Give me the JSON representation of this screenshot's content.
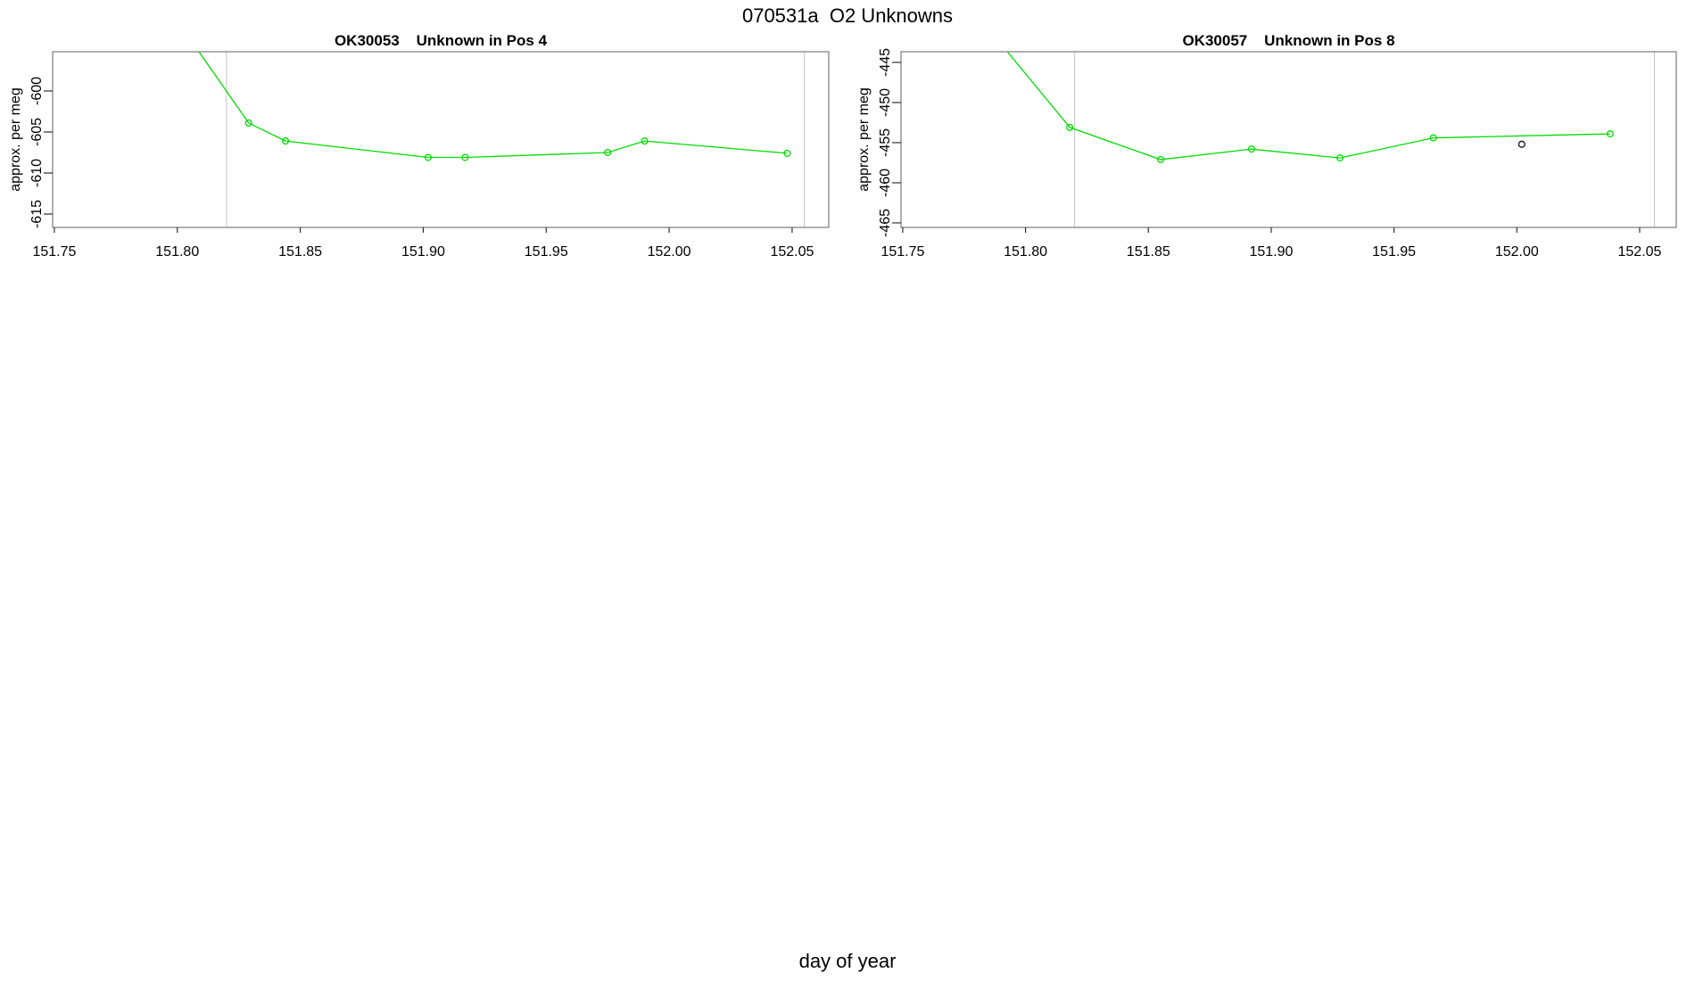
{
  "figure": {
    "title": "070531a  O2 Unknowns",
    "xlabel": "day of year"
  },
  "colors": {
    "series_green": "#00DC00",
    "reference_gray": "#C4C4C4",
    "outlier_black": "#1a1a1a",
    "border_gray": "#7a7a7a",
    "tick_color": "#1f1f1f",
    "text_color": "#000000",
    "background": "#ffffff"
  },
  "chart_data": [
    {
      "id": "ok30053",
      "type": "line",
      "title": "OK30053    Unknown in Pos 4",
      "ylabel": "approx. per meg",
      "xlabel": "day of year",
      "xlim": [
        151.7493,
        152.0649
      ],
      "ylim": [
        -616.63,
        -595.22
      ],
      "xticks": [
        151.75,
        151.8,
        151.85,
        151.9,
        151.95,
        152.0,
        152.05
      ],
      "xtick_labels": [
        "151.75",
        "151.80",
        "151.85",
        "151.90",
        "151.95",
        "152.00",
        "152.05"
      ],
      "yticks": [
        -600,
        -605,
        -610,
        -615
      ],
      "ytick_labels": [
        "-600",
        "-605",
        "-610",
        "-615"
      ],
      "vlines": [
        151.82,
        152.055
      ],
      "grid": false,
      "legend": null,
      "series": [
        {
          "name": "unknown-pos-4",
          "marker": "open-circle",
          "lead_in": {
            "x": 151.795,
            "y": -589.3
          },
          "x": [
            151.829,
            151.844,
            151.902,
            151.917,
            151.975,
            151.99,
            152.048
          ],
          "y": [
            -603.9,
            -606.1,
            -608.1,
            -608.1,
            -607.5,
            -606.1,
            -607.6
          ]
        }
      ],
      "outliers": []
    },
    {
      "id": "ok30057",
      "type": "line",
      "title": "OK30057    Unknown in Pos 8",
      "ylabel": "approx. per meg",
      "xlabel": "day of year",
      "xlim": [
        151.7493,
        152.0649
      ],
      "ylim": [
        -465.56,
        -443.67
      ],
      "xticks": [
        151.75,
        151.8,
        151.85,
        151.9,
        151.95,
        152.0,
        152.05
      ],
      "xtick_labels": [
        "151.75",
        "151.80",
        "151.85",
        "151.90",
        "151.95",
        "152.00",
        "152.05"
      ],
      "yticks": [
        -445,
        -450,
        -455,
        -460,
        -465
      ],
      "ytick_labels": [
        "-445",
        "-450",
        "-455",
        "-460",
        "-465"
      ],
      "vlines": [
        151.82,
        152.056
      ],
      "grid": false,
      "legend": null,
      "series": [
        {
          "name": "unknown-pos-8",
          "marker": "open-circle",
          "lead_in": {
            "x": 151.78,
            "y": -439.0
          },
          "x": [
            151.818,
            151.855,
            151.892,
            151.928,
            151.966,
            152.038
          ],
          "y": [
            -453.1,
            -457.1,
            -455.8,
            -456.9,
            -454.4,
            -453.9
          ]
        }
      ],
      "outliers": [
        {
          "x": 152.002,
          "y": -455.2
        }
      ]
    }
  ]
}
